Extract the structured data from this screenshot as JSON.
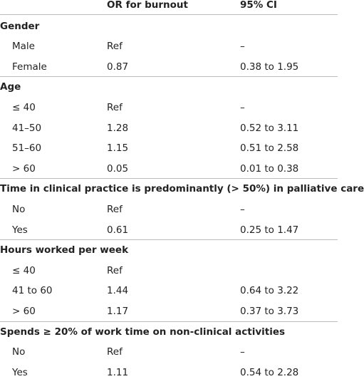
{
  "header": {
    "col2": "OR for burnout",
    "col3": "95% CI"
  },
  "sections": [
    {
      "title": "Gender",
      "rows": [
        [
          "Male",
          "Ref",
          "–"
        ],
        [
          "Female",
          "0.87",
          "0.38 to 1.95"
        ]
      ]
    },
    {
      "title": "Age",
      "rows": [
        [
          "≤ 40",
          "Ref",
          "–"
        ],
        [
          "41–50",
          "1.28",
          "0.52 to 3.11"
        ],
        [
          "51–60",
          "1.15",
          "0.51 to 2.58"
        ],
        [
          "> 60",
          "0.05",
          "0.01 to 0.38"
        ]
      ]
    },
    {
      "title": "Time in clinical practice is predominantly (> 50%) in palliative care",
      "rows": [
        [
          "No",
          "Ref",
          "–"
        ],
        [
          "Yes",
          "0.61",
          "0.25 to 1.47"
        ]
      ]
    },
    {
      "title": "Hours worked per week",
      "rows": [
        [
          "≤ 40",
          "Ref"
        ],
        [
          "41 to 60",
          "1.44",
          "0.64 to 3.22"
        ],
        [
          "> 60",
          "1.17",
          "0.37 to 3.73"
        ]
      ]
    },
    {
      "title": "Spends ≥ 20% of work time on non-clinical activities",
      "rows": [
        [
          "No",
          "Ref",
          "–"
        ],
        [
          "Yes",
          "1.11",
          "0.54 to 2.28"
        ]
      ]
    }
  ]
}
